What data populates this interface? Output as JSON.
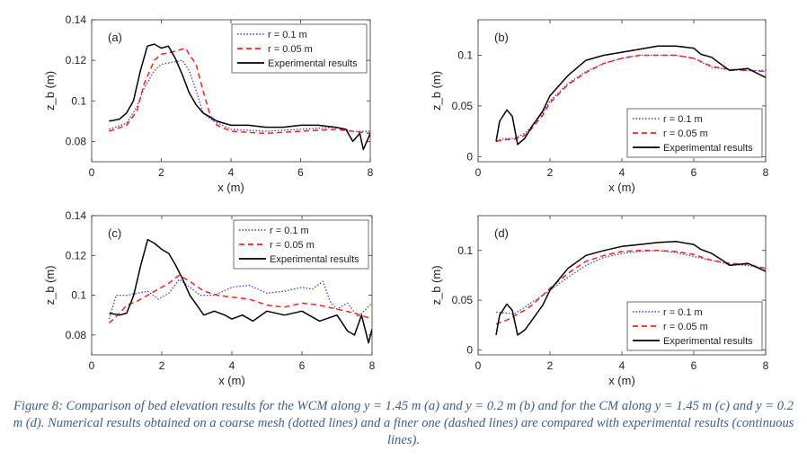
{
  "figure": {
    "caption": "Figure 8: Comparison of bed elevation results for the WCM along y = 1.45 m (a) and y = 0.2 m (b) and for the CM along y = 1.45 m (c) and y = 0.2 m (d). Numerical results obtained on a coarse mesh (dotted lines) and a finer one (dashed lines) are compared with experimental results (continuous lines)."
  },
  "colors": {
    "series_coarse": "#3a3aff",
    "series_fine": "#ff2020",
    "series_experimental": "#000000"
  },
  "chart_data": [
    {
      "type": "line",
      "panel_label": "(a)",
      "xlabel": "x (m)",
      "ylabel": "z_b (m)",
      "xlim": [
        0,
        8
      ],
      "ylim": [
        0.07,
        0.14
      ],
      "xticks": [
        0,
        2,
        4,
        6,
        8
      ],
      "yticks": [
        0.08,
        0.1,
        0.12,
        0.14
      ],
      "ytick_labels": [
        "0.08",
        "0.1",
        "0.12",
        "0.14"
      ],
      "legend_position": "top-right",
      "series": [
        {
          "name": "r = 0.1 m",
          "style": "dotted",
          "x": [
            0.5,
            1.0,
            1.3,
            1.5,
            1.8,
            2.0,
            2.3,
            2.6,
            2.8,
            3.0,
            3.2,
            3.5,
            4.0,
            5.0,
            6.0,
            7.0,
            7.5,
            8.0
          ],
          "y": [
            0.086,
            0.089,
            0.097,
            0.106,
            0.115,
            0.118,
            0.119,
            0.12,
            0.115,
            0.105,
            0.094,
            0.09,
            0.086,
            0.085,
            0.086,
            0.087,
            0.085,
            0.085
          ]
        },
        {
          "name": "r = 0.05 m",
          "style": "dashed",
          "x": [
            0.5,
            1.0,
            1.3,
            1.5,
            1.8,
            2.0,
            2.3,
            2.5,
            2.7,
            2.8,
            3.0,
            3.2,
            3.4,
            3.6,
            4.0,
            5.0,
            6.0,
            7.0,
            7.5,
            8.0
          ],
          "y": [
            0.085,
            0.088,
            0.095,
            0.108,
            0.12,
            0.123,
            0.124,
            0.125,
            0.126,
            0.123,
            0.118,
            0.105,
            0.093,
            0.088,
            0.085,
            0.084,
            0.085,
            0.086,
            0.085,
            0.084
          ]
        },
        {
          "name": "Experimental results",
          "style": "solid",
          "x": [
            0.5,
            0.8,
            1.0,
            1.2,
            1.4,
            1.6,
            1.8,
            2.0,
            2.2,
            2.4,
            2.6,
            2.8,
            3.0,
            3.2,
            3.4,
            3.6,
            4.0,
            4.5,
            5.0,
            5.5,
            6.0,
            6.5,
            7.0,
            7.3,
            7.5,
            7.7,
            7.8,
            8.0
          ],
          "y": [
            0.09,
            0.091,
            0.094,
            0.1,
            0.115,
            0.127,
            0.128,
            0.126,
            0.127,
            0.121,
            0.113,
            0.104,
            0.098,
            0.094,
            0.092,
            0.09,
            0.088,
            0.088,
            0.087,
            0.087,
            0.088,
            0.088,
            0.087,
            0.086,
            0.08,
            0.084,
            0.076,
            0.084
          ]
        }
      ]
    },
    {
      "type": "line",
      "panel_label": "(b)",
      "xlabel": "x (m)",
      "ylabel": "z_b (m)",
      "xlim": [
        0,
        8
      ],
      "ylim": [
        -0.005,
        0.135
      ],
      "xticks": [
        0,
        2,
        4,
        6,
        8
      ],
      "yticks": [
        0,
        0.05,
        0.1
      ],
      "ytick_labels": [
        "0",
        "0.05",
        "0.1"
      ],
      "legend_position": "bottom-right",
      "series": [
        {
          "name": "r = 0.1 m",
          "style": "dotted",
          "x": [
            0.5,
            0.8,
            1.0,
            1.3,
            1.5,
            1.8,
            2.0,
            2.5,
            3.0,
            3.5,
            4.0,
            4.5,
            5.0,
            5.5,
            6.0,
            6.5,
            7.0,
            7.5,
            8.0
          ],
          "y": [
            0.016,
            0.018,
            0.018,
            0.023,
            0.03,
            0.043,
            0.055,
            0.072,
            0.084,
            0.092,
            0.097,
            0.1,
            0.1,
            0.1,
            0.097,
            0.088,
            0.086,
            0.085,
            0.085
          ]
        },
        {
          "name": "r = 0.05 m",
          "style": "dashed",
          "x": [
            0.5,
            0.8,
            1.0,
            1.3,
            1.5,
            1.8,
            2.0,
            2.5,
            3.0,
            3.5,
            4.0,
            4.5,
            5.0,
            5.5,
            6.0,
            6.5,
            7.0,
            7.5,
            8.0
          ],
          "y": [
            0.015,
            0.017,
            0.017,
            0.021,
            0.028,
            0.041,
            0.053,
            0.071,
            0.083,
            0.092,
            0.097,
            0.1,
            0.1,
            0.1,
            0.097,
            0.089,
            0.086,
            0.085,
            0.084
          ]
        },
        {
          "name": "Experimental results",
          "style": "solid",
          "x": [
            0.5,
            0.6,
            0.8,
            0.95,
            1.1,
            1.3,
            1.5,
            1.8,
            2.0,
            2.5,
            3.0,
            3.5,
            4.0,
            4.5,
            5.0,
            5.5,
            6.0,
            6.2,
            6.5,
            6.8,
            7.0,
            7.5,
            8.0
          ],
          "y": [
            0.015,
            0.035,
            0.046,
            0.04,
            0.012,
            0.018,
            0.03,
            0.045,
            0.06,
            0.08,
            0.095,
            0.1,
            0.103,
            0.106,
            0.109,
            0.109,
            0.107,
            0.101,
            0.098,
            0.09,
            0.085,
            0.087,
            0.078
          ]
        }
      ]
    },
    {
      "type": "line",
      "panel_label": "(c)",
      "xlabel": "x (m)",
      "ylabel": "z_b (m)",
      "xlim": [
        0,
        8
      ],
      "ylim": [
        0.07,
        0.14
      ],
      "xticks": [
        0,
        2,
        4,
        6,
        8
      ],
      "yticks": [
        0.08,
        0.1,
        0.12,
        0.14
      ],
      "ytick_labels": [
        "0.08",
        "0.1",
        "0.12",
        "0.14"
      ],
      "legend_position": "top-right",
      "series": [
        {
          "name": "r = 0.1 m",
          "style": "dotted",
          "x": [
            0.5,
            0.7,
            1.0,
            1.3,
            1.6,
            1.9,
            2.2,
            2.5,
            2.8,
            3.1,
            3.5,
            4.0,
            4.5,
            5.0,
            5.5,
            6.0,
            6.3,
            6.6,
            6.8,
            7.0,
            7.3,
            7.6,
            8.0
          ],
          "y": [
            0.088,
            0.1,
            0.1,
            0.101,
            0.102,
            0.098,
            0.101,
            0.108,
            0.104,
            0.1,
            0.1,
            0.104,
            0.105,
            0.101,
            0.102,
            0.104,
            0.103,
            0.107,
            0.097,
            0.093,
            0.096,
            0.089,
            0.096
          ]
        },
        {
          "name": "r = 0.05 m",
          "style": "dashed",
          "x": [
            0.5,
            0.8,
            1.0,
            1.3,
            1.6,
            1.9,
            2.2,
            2.5,
            2.8,
            3.2,
            3.6,
            4.0,
            4.5,
            5.0,
            5.5,
            6.0,
            6.5,
            7.0,
            7.5,
            8.0
          ],
          "y": [
            0.086,
            0.091,
            0.095,
            0.097,
            0.1,
            0.103,
            0.106,
            0.11,
            0.107,
            0.102,
            0.1,
            0.099,
            0.098,
            0.095,
            0.094,
            0.096,
            0.095,
            0.093,
            0.091,
            0.088
          ]
        },
        {
          "name": "Experimental results",
          "style": "solid",
          "x": [
            0.5,
            0.8,
            1.0,
            1.2,
            1.4,
            1.6,
            1.8,
            2.0,
            2.2,
            2.4,
            2.6,
            2.8,
            3.0,
            3.2,
            3.5,
            3.8,
            4.0,
            4.3,
            4.6,
            5.0,
            5.5,
            6.0,
            6.5,
            7.0,
            7.3,
            7.5,
            7.7,
            7.9,
            8.0
          ],
          "y": [
            0.091,
            0.09,
            0.091,
            0.1,
            0.115,
            0.128,
            0.126,
            0.123,
            0.121,
            0.115,
            0.108,
            0.1,
            0.095,
            0.09,
            0.092,
            0.09,
            0.088,
            0.09,
            0.087,
            0.092,
            0.09,
            0.092,
            0.087,
            0.09,
            0.082,
            0.08,
            0.09,
            0.076,
            0.083
          ]
        }
      ]
    },
    {
      "type": "line",
      "panel_label": "(d)",
      "xlabel": "x (m)",
      "ylabel": "z_b (m)",
      "xlim": [
        0,
        8
      ],
      "ylim": [
        -0.005,
        0.135
      ],
      "xticks": [
        0,
        2,
        4,
        6,
        8
      ],
      "yticks": [
        0,
        0.05,
        0.1
      ],
      "ytick_labels": [
        "0",
        "0.05",
        "0.1"
      ],
      "legend_position": "bottom-right",
      "series": [
        {
          "name": "r = 0.1 m",
          "style": "dotted",
          "x": [
            0.5,
            0.8,
            1.0,
            1.3,
            1.5,
            1.8,
            2.0,
            2.5,
            3.0,
            3.5,
            4.0,
            4.5,
            5.0,
            5.5,
            6.0,
            6.5,
            7.0,
            7.5,
            8.0
          ],
          "y": [
            0.038,
            0.037,
            0.036,
            0.043,
            0.048,
            0.055,
            0.06,
            0.073,
            0.085,
            0.093,
            0.097,
            0.099,
            0.1,
            0.098,
            0.094,
            0.09,
            0.086,
            0.085,
            0.082
          ]
        },
        {
          "name": "r = 0.05 m",
          "style": "dashed",
          "x": [
            0.5,
            0.8,
            1.0,
            1.3,
            1.5,
            1.8,
            2.0,
            2.5,
            3.0,
            3.5,
            4.0,
            4.5,
            5.0,
            5.5,
            6.0,
            6.5,
            7.0,
            7.5,
            8.0
          ],
          "y": [
            0.026,
            0.03,
            0.034,
            0.04,
            0.045,
            0.055,
            0.062,
            0.077,
            0.089,
            0.095,
            0.099,
            0.1,
            0.1,
            0.099,
            0.096,
            0.09,
            0.087,
            0.086,
            0.082
          ]
        },
        {
          "name": "Experimental results",
          "style": "solid",
          "x": [
            0.5,
            0.6,
            0.8,
            0.95,
            1.1,
            1.3,
            1.5,
            1.8,
            2.0,
            2.5,
            3.0,
            3.5,
            4.0,
            4.5,
            5.0,
            5.5,
            6.0,
            6.2,
            6.5,
            6.8,
            7.0,
            7.5,
            8.0
          ],
          "y": [
            0.015,
            0.035,
            0.046,
            0.04,
            0.015,
            0.02,
            0.03,
            0.045,
            0.06,
            0.082,
            0.095,
            0.1,
            0.104,
            0.106,
            0.108,
            0.109,
            0.106,
            0.101,
            0.097,
            0.09,
            0.085,
            0.087,
            0.079
          ]
        }
      ]
    }
  ]
}
